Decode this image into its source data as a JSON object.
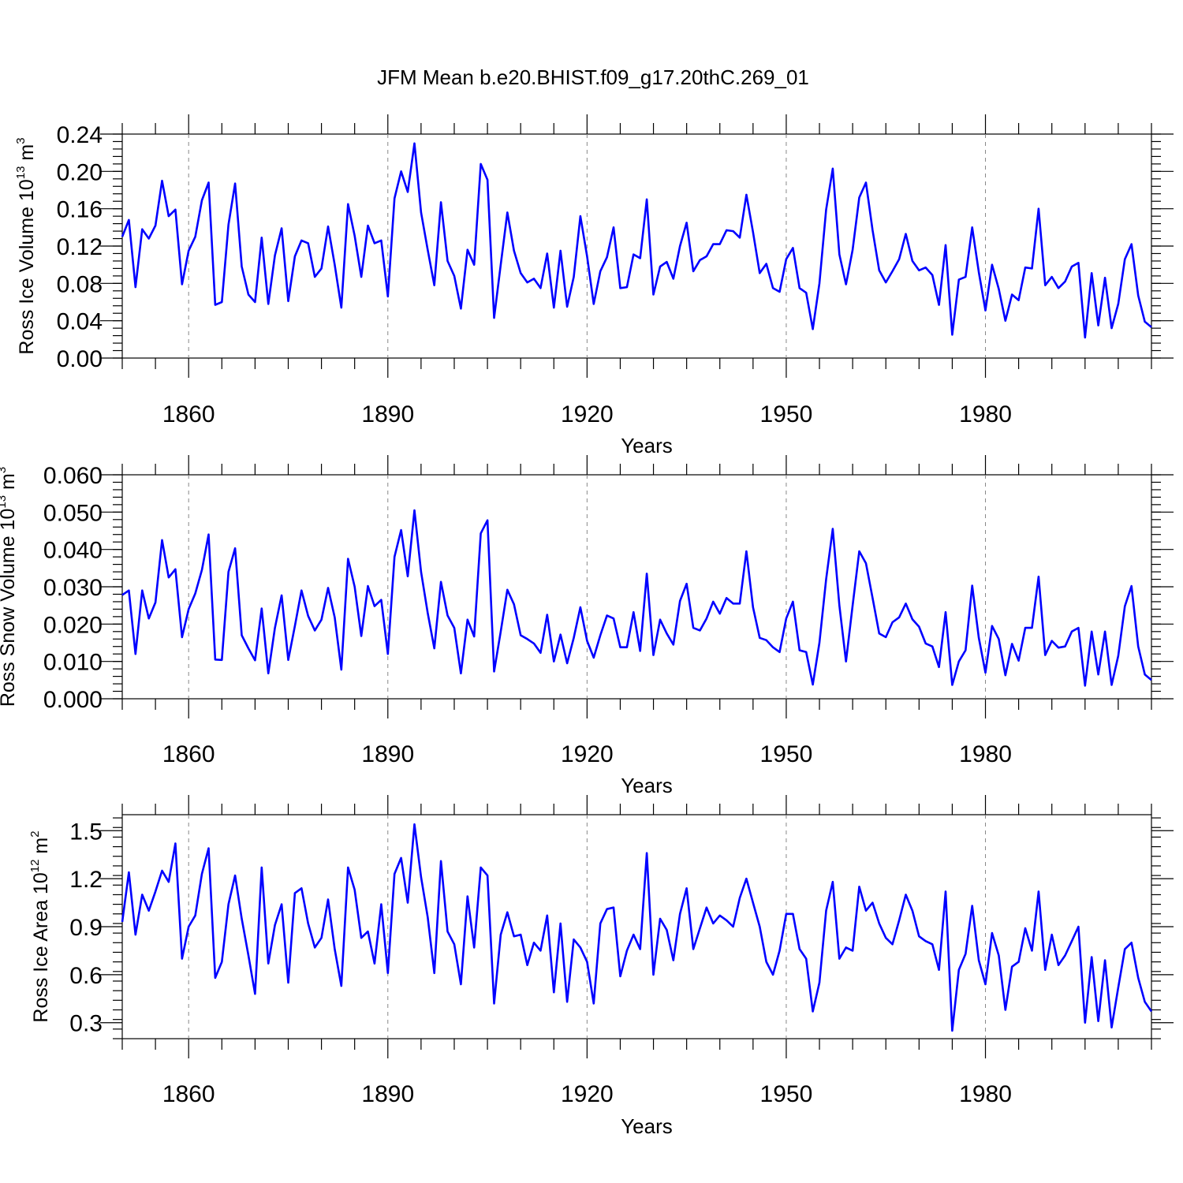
{
  "title": "JFM Mean b.e20.BHIST.f09_g17.20thC.269_01",
  "colors": {
    "series": "#0000ff",
    "axis": "#000000",
    "grid": "#888888"
  },
  "chart_data": [
    {
      "type": "line",
      "title": "JFM Mean b.e20.BHIST.f09_g17.20thC.269_01",
      "xlabel": "Years",
      "ylabel_main": "Ross Ice Volume 10",
      "ylabel_exp": "13",
      "ylabel_unit": " m",
      "ylabel_unit_exp": "3",
      "xlim": [
        1850,
        2005
      ],
      "ylim": [
        0,
        0.24
      ],
      "yticks": [
        "0.00",
        "0.04",
        "0.08",
        "0.12",
        "0.16",
        "0.20",
        "0.24"
      ],
      "yminor_step": 0.008,
      "xticks": [
        "1860",
        "1890",
        "1920",
        "1950",
        "1980"
      ],
      "start_year": 1850,
      "series": [
        {
          "name": "Ross Ice Volume",
          "values": [
            0.13,
            0.148,
            0.076,
            0.138,
            0.128,
            0.142,
            0.19,
            0.152,
            0.159,
            0.079,
            0.115,
            0.13,
            0.169,
            0.188,
            0.057,
            0.06,
            0.143,
            0.187,
            0.098,
            0.068,
            0.06,
            0.129,
            0.058,
            0.11,
            0.139,
            0.061,
            0.109,
            0.126,
            0.123,
            0.087,
            0.096,
            0.141,
            0.1,
            0.054,
            0.165,
            0.131,
            0.087,
            0.142,
            0.123,
            0.126,
            0.066,
            0.171,
            0.2,
            0.178,
            0.23,
            0.156,
            0.116,
            0.078,
            0.167,
            0.104,
            0.088,
            0.053,
            0.116,
            0.1,
            0.208,
            0.191,
            0.043,
            0.1,
            0.156,
            0.115,
            0.091,
            0.081,
            0.085,
            0.075,
            0.112,
            0.054,
            0.115,
            0.055,
            0.087,
            0.152,
            0.109,
            0.058,
            0.093,
            0.108,
            0.14,
            0.075,
            0.076,
            0.111,
            0.107,
            0.17,
            0.068,
            0.098,
            0.103,
            0.085,
            0.12,
            0.145,
            0.093,
            0.105,
            0.109,
            0.122,
            0.122,
            0.137,
            0.136,
            0.129,
            0.175,
            0.135,
            0.091,
            0.101,
            0.075,
            0.071,
            0.106,
            0.118,
            0.075,
            0.07,
            0.031,
            0.08,
            0.159,
            0.203,
            0.111,
            0.079,
            0.116,
            0.172,
            0.188,
            0.137,
            0.094,
            0.081,
            0.093,
            0.106,
            0.133,
            0.104,
            0.094,
            0.097,
            0.089,
            0.057,
            0.121,
            0.025,
            0.084,
            0.087,
            0.14,
            0.092,
            0.051,
            0.1,
            0.074,
            0.04,
            0.068,
            0.062,
            0.097,
            0.096,
            0.16,
            0.078,
            0.087,
            0.075,
            0.082,
            0.098,
            0.102,
            0.022,
            0.091,
            0.035,
            0.086,
            0.032,
            0.058,
            0.106,
            0.122,
            0.067,
            0.039,
            0.033
          ]
        }
      ]
    },
    {
      "type": "line",
      "title": "",
      "xlabel": "Years",
      "ylabel_main": "Ross Snow Volume 10",
      "ylabel_exp": "13",
      "ylabel_unit": " m",
      "ylabel_unit_exp": "3",
      "xlim": [
        1850,
        2005
      ],
      "ylim": [
        0,
        0.06
      ],
      "yticks": [
        "0.000",
        "0.010",
        "0.020",
        "0.030",
        "0.040",
        "0.050",
        "0.060"
      ],
      "yminor_step": 0.002,
      "xticks": [
        "1860",
        "1890",
        "1920",
        "1950",
        "1980"
      ],
      "start_year": 1850,
      "series": [
        {
          "name": "Ross Snow Volume",
          "values": [
            0.0278,
            0.029,
            0.012,
            0.029,
            0.0215,
            0.0258,
            0.0425,
            0.0325,
            0.0347,
            0.0165,
            0.024,
            0.0282,
            0.0345,
            0.044,
            0.0105,
            0.0104,
            0.034,
            0.0403,
            0.017,
            0.0135,
            0.0103,
            0.0242,
            0.0068,
            0.019,
            0.0277,
            0.0104,
            0.0195,
            0.029,
            0.0222,
            0.0183,
            0.0212,
            0.0297,
            0.0218,
            0.0078,
            0.0375,
            0.03,
            0.0168,
            0.0302,
            0.0248,
            0.0265,
            0.012,
            0.038,
            0.0452,
            0.0328,
            0.0505,
            0.034,
            0.023,
            0.0135,
            0.0313,
            0.0223,
            0.019,
            0.0068,
            0.0212,
            0.0167,
            0.0443,
            0.0478,
            0.0073,
            0.018,
            0.0292,
            0.0253,
            0.017,
            0.016,
            0.0148,
            0.0123,
            0.0225,
            0.01,
            0.0172,
            0.0095,
            0.0163,
            0.0245,
            0.0155,
            0.011,
            0.017,
            0.0223,
            0.0215,
            0.0138,
            0.0138,
            0.0232,
            0.0128,
            0.0335,
            0.0117,
            0.0212,
            0.0175,
            0.0145,
            0.0262,
            0.0308,
            0.019,
            0.0183,
            0.0215,
            0.026,
            0.0228,
            0.027,
            0.0255,
            0.0255,
            0.0395,
            0.0245,
            0.0163,
            0.0157,
            0.0138,
            0.0125,
            0.0215,
            0.026,
            0.013,
            0.0125,
            0.0038,
            0.015,
            0.032,
            0.0455,
            0.025,
            0.01,
            0.025,
            0.0395,
            0.0363,
            0.027,
            0.0175,
            0.0165,
            0.0205,
            0.0218,
            0.0255,
            0.0213,
            0.0193,
            0.0148,
            0.014,
            0.0085,
            0.0232,
            0.0037,
            0.01,
            0.013,
            0.0303,
            0.0163,
            0.007,
            0.0195,
            0.016,
            0.0063,
            0.0147,
            0.0102,
            0.019,
            0.019,
            0.0327,
            0.0117,
            0.0155,
            0.0137,
            0.014,
            0.018,
            0.019,
            0.0035,
            0.018,
            0.0065,
            0.018,
            0.0037,
            0.0115,
            0.0248,
            0.0302,
            0.014,
            0.0065,
            0.005
          ]
        }
      ]
    },
    {
      "type": "line",
      "title": "",
      "xlabel": "Years",
      "ylabel_main": "Ross Ice Area 10",
      "ylabel_exp": "12",
      "ylabel_unit": " m",
      "ylabel_unit_exp": "2",
      "xlim": [
        1850,
        2005
      ],
      "ylim": [
        0.2,
        1.6
      ],
      "yticks": [
        "0.3",
        "0.6",
        "0.9",
        "1.2",
        "1.5"
      ],
      "ytick_values": [
        0.3,
        0.6,
        0.9,
        1.2,
        1.5
      ],
      "yminor_step": 0.06,
      "xticks": [
        "1860",
        "1890",
        "1920",
        "1950",
        "1980"
      ],
      "start_year": 1850,
      "series": [
        {
          "name": "Ross Ice Area",
          "values": [
            0.93,
            1.24,
            0.85,
            1.1,
            1.0,
            1.12,
            1.25,
            1.18,
            1.42,
            0.7,
            0.9,
            0.97,
            1.23,
            1.39,
            0.58,
            0.68,
            1.04,
            1.22,
            0.95,
            0.72,
            0.48,
            1.27,
            0.67,
            0.91,
            1.04,
            0.55,
            1.11,
            1.14,
            0.92,
            0.77,
            0.83,
            1.07,
            0.76,
            0.53,
            1.27,
            1.13,
            0.83,
            0.87,
            0.67,
            1.04,
            0.61,
            1.23,
            1.33,
            1.05,
            1.54,
            1.21,
            0.96,
            0.61,
            1.31,
            0.87,
            0.79,
            0.54,
            1.09,
            0.77,
            1.27,
            1.22,
            0.42,
            0.85,
            0.99,
            0.84,
            0.85,
            0.66,
            0.8,
            0.75,
            0.97,
            0.49,
            0.92,
            0.43,
            0.82,
            0.77,
            0.68,
            0.42,
            0.92,
            1.01,
            1.02,
            0.59,
            0.75,
            0.85,
            0.76,
            1.36,
            0.6,
            0.95,
            0.88,
            0.69,
            0.98,
            1.14,
            0.76,
            0.89,
            1.02,
            0.92,
            0.97,
            0.94,
            0.9,
            1.08,
            1.2,
            1.05,
            0.9,
            0.68,
            0.6,
            0.75,
            0.98,
            0.98,
            0.76,
            0.7,
            0.37,
            0.55,
            1.0,
            1.18,
            0.7,
            0.77,
            0.75,
            1.15,
            1.0,
            1.05,
            0.92,
            0.83,
            0.79,
            0.94,
            1.1,
            1.0,
            0.84,
            0.81,
            0.79,
            0.63,
            1.12,
            0.25,
            0.63,
            0.73,
            1.03,
            0.69,
            0.54,
            0.86,
            0.72,
            0.38,
            0.65,
            0.68,
            0.89,
            0.75,
            1.12,
            0.63,
            0.85,
            0.66,
            0.72,
            0.81,
            0.9,
            0.3,
            0.71,
            0.31,
            0.69,
            0.27,
            0.52,
            0.76,
            0.8,
            0.58,
            0.43,
            0.37
          ]
        }
      ]
    }
  ]
}
